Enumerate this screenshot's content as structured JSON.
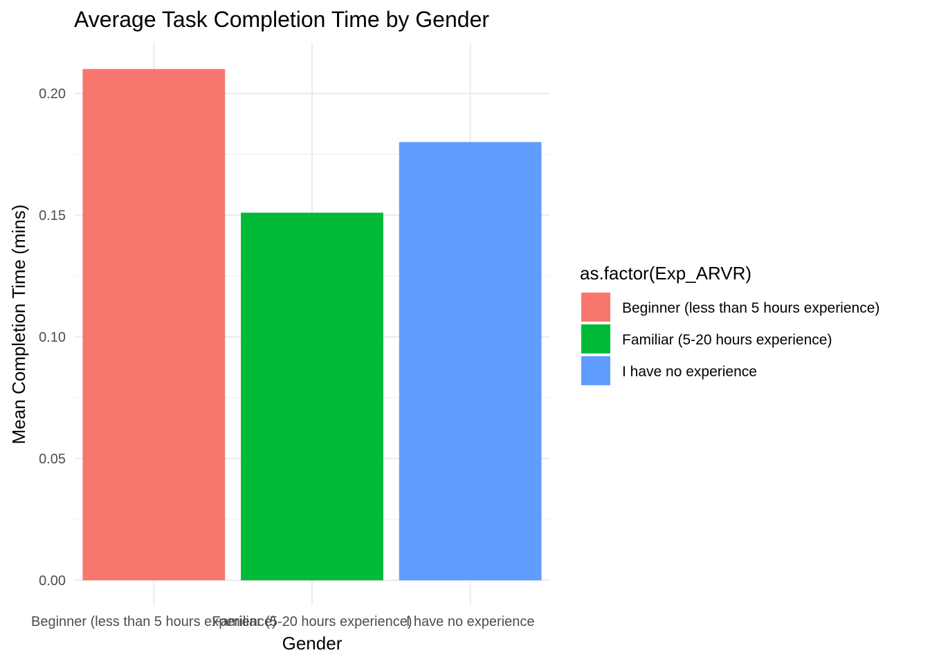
{
  "chart_data": {
    "type": "bar",
    "title": "Average Task Completion Time by Gender",
    "xlabel": "Gender",
    "ylabel": "Mean Completion Time (mins)",
    "categories": [
      "Beginner (less than 5 hours experience)",
      "Familiar (5-20 hours experience)",
      "I have no experience"
    ],
    "values": [
      0.21,
      0.151,
      0.18
    ],
    "colors": [
      "#F8766D",
      "#00BA38",
      "#619CFF"
    ],
    "ylim": [
      0,
      0.21
    ],
    "yticks": [
      0.0,
      0.05,
      0.1,
      0.15,
      0.2
    ],
    "ytick_labels": [
      "0.00",
      "0.05",
      "0.10",
      "0.15",
      "0.20"
    ],
    "grid": true,
    "legend": {
      "title": "as.factor(Exp_ARVR)",
      "placement": "right",
      "entries": [
        "Beginner (less than 5 hours experience)",
        "Familiar (5-20 hours experience)",
        "I have no experience"
      ]
    }
  }
}
